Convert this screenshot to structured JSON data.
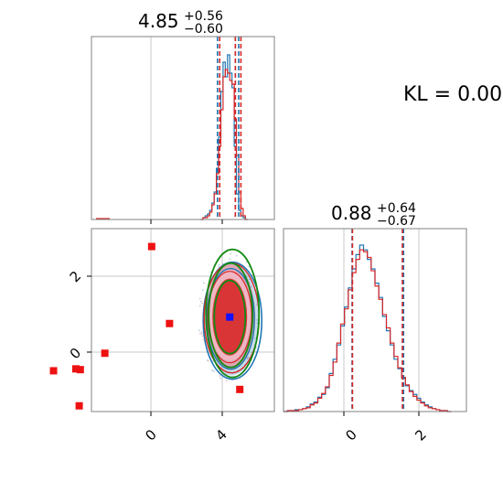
{
  "figure": {
    "kl_text": "KL = 0.00",
    "top_title": {
      "main": "4.85",
      "plus": "+0.56",
      "minus": "−0.60"
    },
    "right_title": {
      "main": "0.88",
      "plus": "+0.64",
      "minus": "−0.67"
    }
  },
  "colors": {
    "blue": "#1f77b4",
    "red": "#d62728",
    "green": "#138a13",
    "pink": "#e39aa8",
    "marker_red": "#ee1111",
    "marker_blue": "#1111ff",
    "grid": "#c8c8c8"
  },
  "chart_data": [
    {
      "type": "histogram",
      "panel": "top-left",
      "xlim": [
        -1.6,
        3.4
      ],
      "x_equiv_range": [
        -1.6,
        6.6
      ],
      "title": "4.85 +0.56 -0.60",
      "quantiles_blue": [
        4.05,
        4.85,
        5.0
      ],
      "quantiles_red": [
        4.15,
        4.85,
        5.1
      ],
      "series": [
        {
          "name": "",
          "color": "blue",
          "x_start": 3.3,
          "bin_width": 0.1,
          "values": [
            0,
            1,
            2,
            3,
            5,
            9,
            15,
            28,
            45,
            70,
            86,
            78,
            90,
            80,
            72,
            40,
            14,
            5,
            2,
            1,
            0
          ]
        },
        {
          "name": "",
          "color": "red",
          "x_start": 3.3,
          "bin_width": 0.1,
          "values": [
            0,
            1,
            1,
            2,
            4,
            8,
            14,
            25,
            40,
            60,
            78,
            82,
            80,
            76,
            74,
            55,
            35,
            15,
            6,
            2,
            0
          ]
        }
      ]
    },
    {
      "type": "scatter",
      "panel": "bottom-left",
      "xlim": [
        -1.6,
        6.6
      ],
      "ylim": [
        -1.6,
        3.2
      ],
      "xticks": [
        "0",
        "4"
      ],
      "yticks": [
        "2",
        "0"
      ],
      "red_squares": [
        [
          1.1,
          2.73
        ],
        [
          1.9,
          0.71
        ],
        [
          -1.0,
          -0.07
        ],
        [
          -2.1,
          -0.5
        ],
        [
          -2.3,
          -0.48
        ],
        [
          -2.15,
          -1.45
        ],
        [
          -3.3,
          -0.53
        ],
        [
          5.05,
          -1.02
        ]
      ],
      "blue_square": [
        4.6,
        0.88
      ],
      "density_center": [
        4.6,
        0.88
      ],
      "density_spread": [
        0.3,
        0.65
      ]
    },
    {
      "type": "histogram",
      "panel": "bottom-right",
      "xlim": [
        -1.6,
        3.2
      ],
      "xticks": [
        "0",
        "2"
      ],
      "title": "0.88 +0.64 -0.67",
      "quantiles_blue": [
        0.2,
        1.55
      ],
      "quantiles_red": [
        0.21,
        1.52
      ],
      "series": [
        {
          "name": "",
          "color": "blue",
          "x_start": -1.6,
          "bin_width": 0.1,
          "values": [
            0,
            1,
            1,
            2,
            2,
            3,
            5,
            8,
            10,
            15,
            18,
            25,
            40,
            55,
            70,
            90,
            110,
            130,
            150,
            165,
            175,
            170,
            160,
            150,
            135,
            120,
            100,
            85,
            70,
            55,
            45,
            35,
            27,
            22,
            18,
            14,
            10,
            7,
            5,
            3,
            2,
            1,
            1,
            0
          ]
        },
        {
          "name": "",
          "color": "red",
          "x_start": -1.6,
          "bin_width": 0.1,
          "values": [
            0,
            1,
            1,
            1,
            2,
            3,
            4,
            7,
            9,
            14,
            19,
            26,
            38,
            52,
            72,
            92,
            108,
            128,
            146,
            160,
            170,
            168,
            162,
            148,
            132,
            118,
            102,
            88,
            72,
            58,
            46,
            36,
            28,
            21,
            16,
            12,
            9,
            6,
            4,
            3,
            2,
            1,
            1,
            0
          ]
        }
      ]
    }
  ]
}
